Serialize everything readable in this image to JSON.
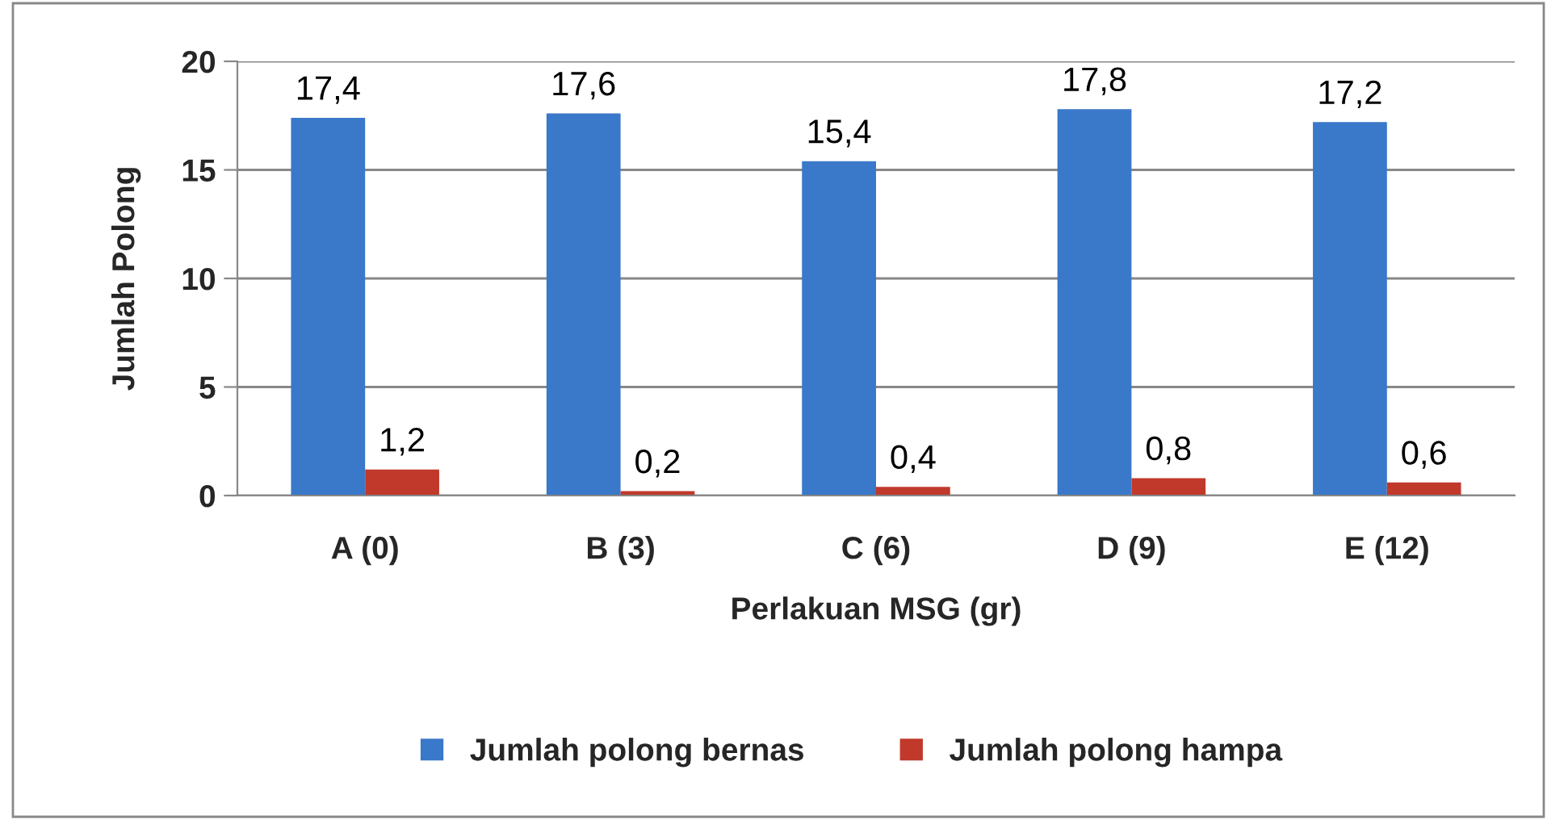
{
  "chart_data": {
    "type": "bar",
    "xlabel": "Perlakuan MSG (gr)",
    "ylabel": "Jumlah Polong",
    "categories": [
      "A (0)",
      "B (3)",
      "C (6)",
      "D (9)",
      "E (12)"
    ],
    "series": [
      {
        "name": "Jumlah polong bernas",
        "color": "#3a78c9",
        "values": [
          17.4,
          17.6,
          15.4,
          17.8,
          17.2
        ],
        "value_labels": [
          "17,4",
          "17,6",
          "15,4",
          "17,8",
          "17,2"
        ]
      },
      {
        "name": "Jumlah polong hampa",
        "color": "#c0392b",
        "values": [
          1.2,
          0.2,
          0.4,
          0.8,
          0.6
        ],
        "value_labels": [
          "1,2",
          "0,2",
          "0,4",
          "0,8",
          "0,6"
        ]
      }
    ],
    "ylim": [
      0,
      20
    ],
    "yticks": [
      0,
      5,
      10,
      15,
      20
    ],
    "grid": "y",
    "legend": "bottom"
  }
}
